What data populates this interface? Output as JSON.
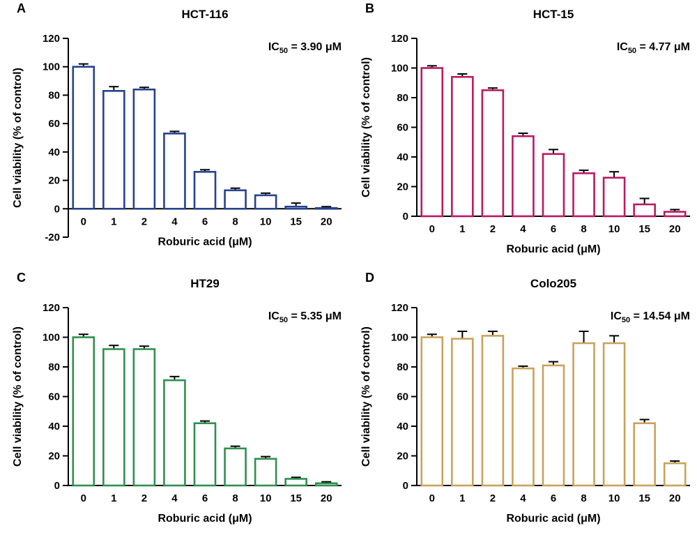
{
  "figure": {
    "xlabel": "Roburic acid (μM)",
    "ylabel": "Cell viability (% of control)"
  },
  "chart_data": [
    {
      "panel": "A",
      "type": "bar",
      "title": "HCT-116",
      "ic50": "3.90 μM",
      "color": "#26418f",
      "categories": [
        "0",
        "1",
        "2",
        "4",
        "6",
        "8",
        "10",
        "15",
        "20"
      ],
      "values": [
        100,
        83,
        84,
        53,
        26,
        13,
        9.5,
        1.5,
        0.5
      ],
      "errors": [
        2,
        3,
        1.5,
        1.5,
        1.5,
        1.5,
        1.5,
        2.5,
        1
      ],
      "ylim": [
        -20,
        120
      ],
      "ytick_step": 20,
      "xlabel": "Roburic acid (μM)",
      "ylabel": "Cell viability (% of control)"
    },
    {
      "panel": "B",
      "type": "bar",
      "title": "HCT-15",
      "ic50": "4.77 μM",
      "color": "#bb1963",
      "categories": [
        "0",
        "1",
        "2",
        "4",
        "6",
        "8",
        "10",
        "15",
        "20"
      ],
      "values": [
        100,
        94,
        85,
        54,
        42,
        29,
        26,
        8,
        3
      ],
      "errors": [
        1.5,
        2,
        1.5,
        2,
        3,
        2,
        4,
        4,
        1.5
      ],
      "ylim": [
        0,
        120
      ],
      "ytick_step": 20,
      "xlabel": "Roburic acid (μM)",
      "ylabel": "Cell viability (% of control)"
    },
    {
      "panel": "C",
      "type": "bar",
      "title": "HT29",
      "ic50": "5.35 μM",
      "color": "#2f8f4e",
      "categories": [
        "0",
        "1",
        "2",
        "4",
        "6",
        "8",
        "10",
        "15",
        "20"
      ],
      "values": [
        100,
        92,
        92,
        71,
        42,
        25,
        18,
        4.5,
        1.5
      ],
      "errors": [
        2,
        2.5,
        2,
        2.5,
        1.5,
        1.5,
        1.5,
        1,
        1
      ],
      "ylim": [
        0,
        120
      ],
      "ytick_step": 20,
      "xlabel": "Roburic acid (μM)",
      "ylabel": "Cell viability (% of control)"
    },
    {
      "panel": "D",
      "type": "bar",
      "title": "Colo205",
      "ic50": "14.54 μM",
      "color": "#c9a35b",
      "categories": [
        "0",
        "1",
        "2",
        "4",
        "6",
        "8",
        "10",
        "15",
        "20"
      ],
      "values": [
        100,
        99,
        101,
        79,
        81,
        96,
        96,
        42,
        15
      ],
      "errors": [
        2,
        5,
        3,
        1.5,
        2.5,
        8,
        5,
        2.5,
        1.5
      ],
      "ylim": [
        0,
        120
      ],
      "ytick_step": 20,
      "xlabel": "Roburic acid (μM)",
      "ylabel": "Cell viability (% of control)"
    }
  ]
}
